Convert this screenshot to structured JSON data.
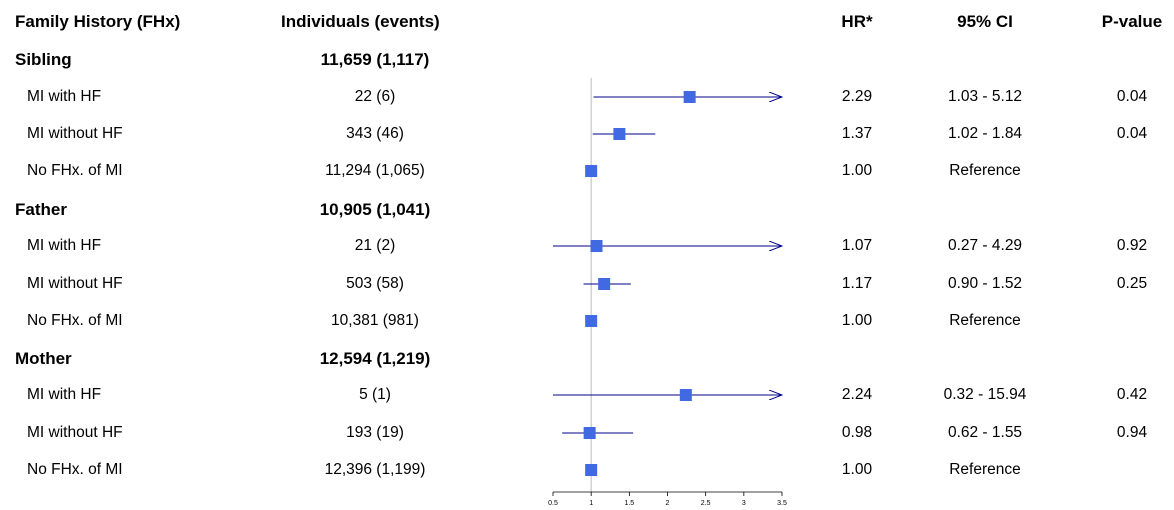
{
  "headers": {
    "group": "Family History (FHx)",
    "individuals": "Individuals (events)",
    "hr": "HR*",
    "ci": "95% CI",
    "p": "P-value"
  },
  "groups": [
    {
      "label": "Sibling",
      "total": "11,659 (1,117)",
      "rows": [
        {
          "label": "MI with HF",
          "n": "22 (6)",
          "hr": "2.29",
          "ci": "1.03 - 5.12",
          "p": "0.04"
        },
        {
          "label": "MI without HF",
          "n": "343 (46)",
          "hr": "1.37",
          "ci": "1.02 - 1.84",
          "p": "0.04"
        },
        {
          "label": "No FHx. of MI",
          "n": "11,294 (1,065)",
          "hr": "1.00",
          "ci": "Reference",
          "p": ""
        }
      ]
    },
    {
      "label": "Father",
      "total": "10,905 (1,041)",
      "rows": [
        {
          "label": "MI with HF",
          "n": "21 (2)",
          "hr": "1.07",
          "ci": "0.27 - 4.29",
          "p": "0.92"
        },
        {
          "label": "MI without HF",
          "n": "503 (58)",
          "hr": "1.17",
          "ci": "0.90 - 1.52",
          "p": "0.25"
        },
        {
          "label": "No FHx. of MI",
          "n": "10,381 (981)",
          "hr": "1.00",
          "ci": "Reference",
          "p": ""
        }
      ]
    },
    {
      "label": "Mother",
      "total": "12,594 (1,219)",
      "rows": [
        {
          "label": "MI with HF",
          "n": "5 (1)",
          "hr": "2.24",
          "ci": "0.32 - 15.94",
          "p": "0.42"
        },
        {
          "label": "MI without HF",
          "n": "193 (19)",
          "hr": "0.98",
          "ci": "0.62 - 1.55",
          "p": "0.94"
        },
        {
          "label": "No FHx. of MI",
          "n": "12,396 (1,199)",
          "hr": "1.00",
          "ci": "Reference",
          "p": ""
        }
      ]
    }
  ],
  "chart_data": {
    "type": "forest",
    "xlim": [
      0.5,
      3.5
    ],
    "xticks": [
      "0.5",
      "1",
      "1.5",
      "2",
      "2.5",
      "3",
      "3.5"
    ],
    "reference_line": 1,
    "marker_color": "#4169E1",
    "line_color": "#00008B",
    "points": [
      {
        "group": "Sibling",
        "row": "MI with HF",
        "hr": 2.29,
        "lo": 1.03,
        "hi": 5.12
      },
      {
        "group": "Sibling",
        "row": "MI without HF",
        "hr": 1.37,
        "lo": 1.02,
        "hi": 1.84
      },
      {
        "group": "Sibling",
        "row": "No FHx. of MI",
        "hr": 1.0,
        "lo": 1.0,
        "hi": 1.0
      },
      {
        "group": "Father",
        "row": "MI with HF",
        "hr": 1.07,
        "lo": 0.27,
        "hi": 4.29
      },
      {
        "group": "Father",
        "row": "MI without HF",
        "hr": 1.17,
        "lo": 0.9,
        "hi": 1.52
      },
      {
        "group": "Father",
        "row": "No FHx. of MI",
        "hr": 1.0,
        "lo": 1.0,
        "hi": 1.0
      },
      {
        "group": "Mother",
        "row": "MI with HF",
        "hr": 2.24,
        "lo": 0.32,
        "hi": 15.94
      },
      {
        "group": "Mother",
        "row": "MI without HF",
        "hr": 0.98,
        "lo": 0.62,
        "hi": 1.55
      },
      {
        "group": "Mother",
        "row": "No FHx. of MI",
        "hr": 1.0,
        "lo": 1.0,
        "hi": 1.0
      }
    ]
  }
}
